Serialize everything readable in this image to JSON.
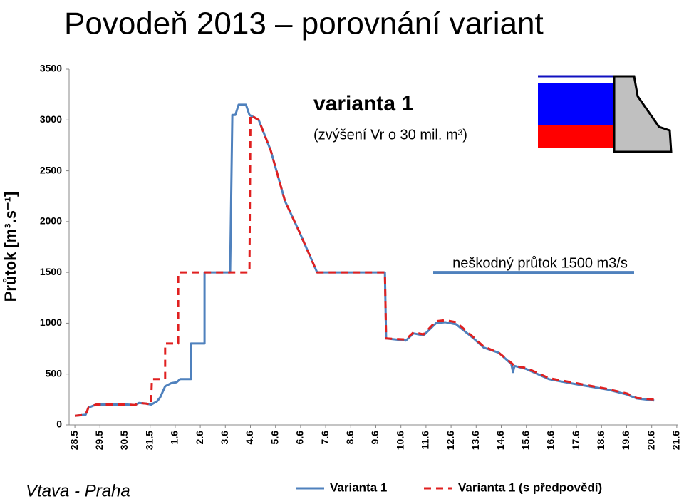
{
  "chart_data": {
    "type": "line",
    "title": "Povodeň 2013 – porovnání variant",
    "y_label": "Průtok [m³.s⁻¹]",
    "station": "Vtava - Praha",
    "annotation": {
      "title": "varianta 1",
      "subtitle": "(zvýšení Vr o 30 mil. m³)"
    },
    "reference_line": {
      "label": "neškodný průtok 1500 m3/s",
      "value": 1500,
      "color": "#4f81bd"
    },
    "xlim": [
      -0.23,
      24.06
    ],
    "xticks": [
      {
        "value": 0,
        "label": "28.5"
      },
      {
        "value": 1,
        "label": "29.5"
      },
      {
        "value": 2,
        "label": "30.5"
      },
      {
        "value": 3,
        "label": "31.5"
      },
      {
        "value": 4,
        "label": "1.6"
      },
      {
        "value": 5,
        "label": "2.6"
      },
      {
        "value": 6,
        "label": "3.6"
      },
      {
        "value": 7,
        "label": "4.6"
      },
      {
        "value": 8,
        "label": "5.6"
      },
      {
        "value": 9,
        "label": "6.6"
      },
      {
        "value": 10,
        "label": "7.6"
      },
      {
        "value": 11,
        "label": "8.6"
      },
      {
        "value": 12,
        "label": "9.6"
      },
      {
        "value": 13,
        "label": "10.6"
      },
      {
        "value": 14,
        "label": "11.6"
      },
      {
        "value": 15,
        "label": "12.6"
      },
      {
        "value": 16,
        "label": "13.6"
      },
      {
        "value": 17,
        "label": "14.6"
      },
      {
        "value": 18,
        "label": "15.6"
      },
      {
        "value": 19,
        "label": "16.6"
      },
      {
        "value": 20,
        "label": "17.6"
      },
      {
        "value": 21,
        "label": "18.6"
      },
      {
        "value": 22,
        "label": "19.6"
      },
      {
        "value": 23,
        "label": "20.6"
      },
      {
        "value": 24,
        "label": "21.6"
      }
    ],
    "ylim": [
      0,
      3500
    ],
    "yticks": [
      0,
      500,
      1000,
      1500,
      2000,
      2500,
      3000,
      3500
    ],
    "series": [
      {
        "name": "Varianta 1",
        "color": "#4f81bd",
        "dash": false,
        "x": [
          0,
          0.43,
          0.54,
          0.85,
          2.1,
          2.4,
          2.55,
          2.84,
          3.04,
          3.27,
          3.4,
          3.6,
          3.84,
          4.06,
          4.2,
          4.63,
          4.63,
          5.17,
          5.17,
          6.19,
          6.28,
          6.4,
          6.53,
          6.82,
          6.96,
          7.33,
          7.81,
          8.38,
          8.95,
          9.66,
          12.36,
          12.41,
          13.2,
          13.5,
          13.9,
          14.4,
          14.77,
          15.2,
          15.9,
          16.3,
          16.9,
          17.4,
          17.47,
          17.53,
          18.0,
          18.9,
          20.0,
          21.2,
          22.0,
          22.4,
          23.1
        ],
        "values": [
          90,
          100,
          170,
          200,
          200,
          195,
          215,
          210,
          200,
          230,
          270,
          380,
          410,
          420,
          450,
          450,
          800,
          800,
          1500,
          1500,
          3050,
          3050,
          3150,
          3150,
          3050,
          3000,
          2700,
          2200,
          1900,
          1500,
          1500,
          850,
          830,
          900,
          880,
          1000,
          1010,
          990,
          850,
          760,
          710,
          600,
          520,
          580,
          550,
          450,
          400,
          350,
          300,
          260,
          240
        ]
      },
      {
        "name": "Varianta 1 (s předpovědí)",
        "color": "#e02020",
        "dash": true,
        "x": [
          0,
          0.43,
          0.54,
          0.85,
          2.1,
          2.4,
          2.55,
          2.84,
          3.04,
          3.07,
          3.6,
          3.6,
          4.12,
          4.12,
          6.96,
          7.0,
          7.33,
          7.81,
          8.38,
          8.95,
          9.66,
          12.36,
          12.41,
          13.2,
          13.5,
          13.9,
          14.4,
          14.77,
          15.2,
          15.9,
          16.3,
          16.9,
          17.4,
          17.53,
          18.0,
          18.9,
          20.0,
          21.2,
          22.0,
          22.4,
          23.1
        ],
        "values": [
          90,
          100,
          170,
          200,
          200,
          195,
          215,
          210,
          200,
          450,
          450,
          800,
          800,
          1500,
          1500,
          3050,
          3000,
          2700,
          2200,
          1900,
          1500,
          1500,
          850,
          840,
          910,
          890,
          1020,
          1030,
          1010,
          860,
          770,
          710,
          610,
          580,
          560,
          460,
          410,
          355,
          310,
          265,
          250
        ]
      }
    ]
  }
}
